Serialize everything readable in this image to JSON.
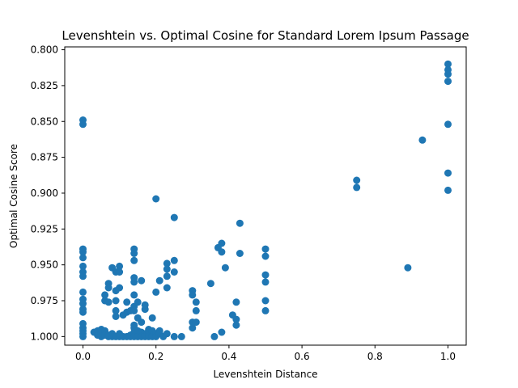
{
  "chart_data": {
    "type": "scatter",
    "title": "Levenshtein vs. Optimal Cosine for Standard Lorem Ipsum Passage",
    "xlabel": "Levenshtein Distance",
    "ylabel": "Optimal Cosine Score",
    "xlim": [
      -0.05,
      1.05
    ],
    "ylim": [
      1.006,
      0.798
    ],
    "y_inverted": true,
    "grid": false,
    "marker_color": "#1f77b4",
    "x_ticks": [
      {
        "value": 0.0,
        "label": "0.0"
      },
      {
        "value": 0.2,
        "label": "0.2"
      },
      {
        "value": 0.4,
        "label": "0.4"
      },
      {
        "value": 0.6,
        "label": "0.6"
      },
      {
        "value": 0.8,
        "label": "0.8"
      },
      {
        "value": 1.0,
        "label": "1.0"
      }
    ],
    "y_ticks": [
      {
        "value": 0.8,
        "label": "0.800"
      },
      {
        "value": 0.825,
        "label": "0.825"
      },
      {
        "value": 0.85,
        "label": "0.850"
      },
      {
        "value": 0.875,
        "label": "0.875"
      },
      {
        "value": 0.9,
        "label": "0.900"
      },
      {
        "value": 0.925,
        "label": "0.925"
      },
      {
        "value": 0.95,
        "label": "0.950"
      },
      {
        "value": 0.975,
        "label": "0.975"
      },
      {
        "value": 1.0,
        "label": "1.000"
      }
    ],
    "points": [
      [
        0.0,
        0.849
      ],
      [
        0.0,
        0.852
      ],
      [
        0.0,
        0.939
      ],
      [
        0.0,
        0.941
      ],
      [
        0.0,
        0.945
      ],
      [
        0.0,
        0.951
      ],
      [
        0.0,
        0.955
      ],
      [
        0.0,
        0.958
      ],
      [
        0.0,
        0.969
      ],
      [
        0.0,
        0.974
      ],
      [
        0.0,
        0.977
      ],
      [
        0.0,
        0.981
      ],
      [
        0.0,
        0.983
      ],
      [
        0.0,
        0.991
      ],
      [
        0.0,
        0.994
      ],
      [
        0.0,
        0.996
      ],
      [
        0.0,
        0.998
      ],
      [
        0.0,
        1.0
      ],
      [
        0.03,
        0.997
      ],
      [
        0.04,
        0.996
      ],
      [
        0.04,
        0.999
      ],
      [
        0.05,
        0.995
      ],
      [
        0.05,
        0.997
      ],
      [
        0.05,
        0.998
      ],
      [
        0.05,
        1.0
      ],
      [
        0.06,
        0.996
      ],
      [
        0.06,
        0.999
      ],
      [
        0.06,
        0.971
      ],
      [
        0.06,
        0.975
      ],
      [
        0.07,
        0.963
      ],
      [
        0.07,
        0.966
      ],
      [
        0.07,
        0.976
      ],
      [
        0.07,
        0.999
      ],
      [
        0.07,
        1.0
      ],
      [
        0.08,
        0.952
      ],
      [
        0.08,
        0.998
      ],
      [
        0.08,
        1.0
      ],
      [
        0.09,
        0.955
      ],
      [
        0.09,
        0.968
      ],
      [
        0.09,
        0.975
      ],
      [
        0.09,
        0.982
      ],
      [
        0.09,
        0.986
      ],
      [
        0.09,
        1.0
      ],
      [
        0.1,
        0.951
      ],
      [
        0.1,
        0.955
      ],
      [
        0.1,
        0.966
      ],
      [
        0.1,
        0.998
      ],
      [
        0.1,
        1.0
      ],
      [
        0.11,
        0.985
      ],
      [
        0.11,
        1.0
      ],
      [
        0.12,
        0.976
      ],
      [
        0.12,
        0.983
      ],
      [
        0.12,
        1.0
      ],
      [
        0.13,
        0.982
      ],
      [
        0.13,
        0.999
      ],
      [
        0.13,
        1.0
      ],
      [
        0.14,
        0.939
      ],
      [
        0.14,
        0.942
      ],
      [
        0.14,
        0.947
      ],
      [
        0.14,
        0.959
      ],
      [
        0.14,
        0.962
      ],
      [
        0.14,
        0.971
      ],
      [
        0.14,
        0.979
      ],
      [
        0.14,
        0.982
      ],
      [
        0.14,
        0.992
      ],
      [
        0.14,
        0.994
      ],
      [
        0.14,
        0.997
      ],
      [
        0.14,
        1.0
      ],
      [
        0.15,
        0.976
      ],
      [
        0.15,
        0.987
      ],
      [
        0.15,
        0.996
      ],
      [
        0.15,
        1.0
      ],
      [
        0.16,
        0.961
      ],
      [
        0.16,
        0.99
      ],
      [
        0.16,
        0.997
      ],
      [
        0.16,
        1.0
      ],
      [
        0.17,
        0.981
      ],
      [
        0.17,
        0.978
      ],
      [
        0.17,
        0.998
      ],
      [
        0.17,
        1.0
      ],
      [
        0.18,
        0.995
      ],
      [
        0.18,
        0.997
      ],
      [
        0.18,
        0.999
      ],
      [
        0.18,
        1.0
      ],
      [
        0.19,
        0.987
      ],
      [
        0.19,
        0.996
      ],
      [
        0.19,
        0.999
      ],
      [
        0.19,
        1.0
      ],
      [
        0.2,
        0.904
      ],
      [
        0.2,
        0.969
      ],
      [
        0.2,
        0.998
      ],
      [
        0.2,
        1.0
      ],
      [
        0.21,
        0.961
      ],
      [
        0.21,
        0.996
      ],
      [
        0.21,
        0.998
      ],
      [
        0.22,
        1.0
      ],
      [
        0.23,
        0.949
      ],
      [
        0.23,
        0.953
      ],
      [
        0.23,
        0.958
      ],
      [
        0.23,
        0.966
      ],
      [
        0.23,
        0.998
      ],
      [
        0.25,
        0.917
      ],
      [
        0.25,
        0.947
      ],
      [
        0.25,
        0.955
      ],
      [
        0.25,
        1.0
      ],
      [
        0.27,
        1.0
      ],
      [
        0.3,
        0.968
      ],
      [
        0.3,
        0.971
      ],
      [
        0.3,
        0.99
      ],
      [
        0.3,
        0.994
      ],
      [
        0.31,
        0.976
      ],
      [
        0.31,
        0.982
      ],
      [
        0.31,
        0.99
      ],
      [
        0.35,
        0.963
      ],
      [
        0.36,
        1.0
      ],
      [
        0.37,
        0.938
      ],
      [
        0.38,
        0.935
      ],
      [
        0.38,
        0.941
      ],
      [
        0.38,
        0.997
      ],
      [
        0.39,
        0.952
      ],
      [
        0.41,
        0.985
      ],
      [
        0.42,
        0.976
      ],
      [
        0.42,
        0.992
      ],
      [
        0.42,
        0.988
      ],
      [
        0.43,
        0.921
      ],
      [
        0.43,
        0.942
      ],
      [
        0.5,
        0.939
      ],
      [
        0.5,
        0.944
      ],
      [
        0.5,
        0.957
      ],
      [
        0.5,
        0.962
      ],
      [
        0.5,
        0.975
      ],
      [
        0.5,
        0.982
      ],
      [
        0.75,
        0.891
      ],
      [
        0.75,
        0.896
      ],
      [
        0.89,
        0.952
      ],
      [
        0.93,
        0.863
      ],
      [
        1.0,
        0.81
      ],
      [
        1.0,
        0.814
      ],
      [
        1.0,
        0.817
      ],
      [
        1.0,
        0.822
      ],
      [
        1.0,
        0.852
      ],
      [
        1.0,
        0.886
      ],
      [
        1.0,
        0.898
      ]
    ]
  }
}
